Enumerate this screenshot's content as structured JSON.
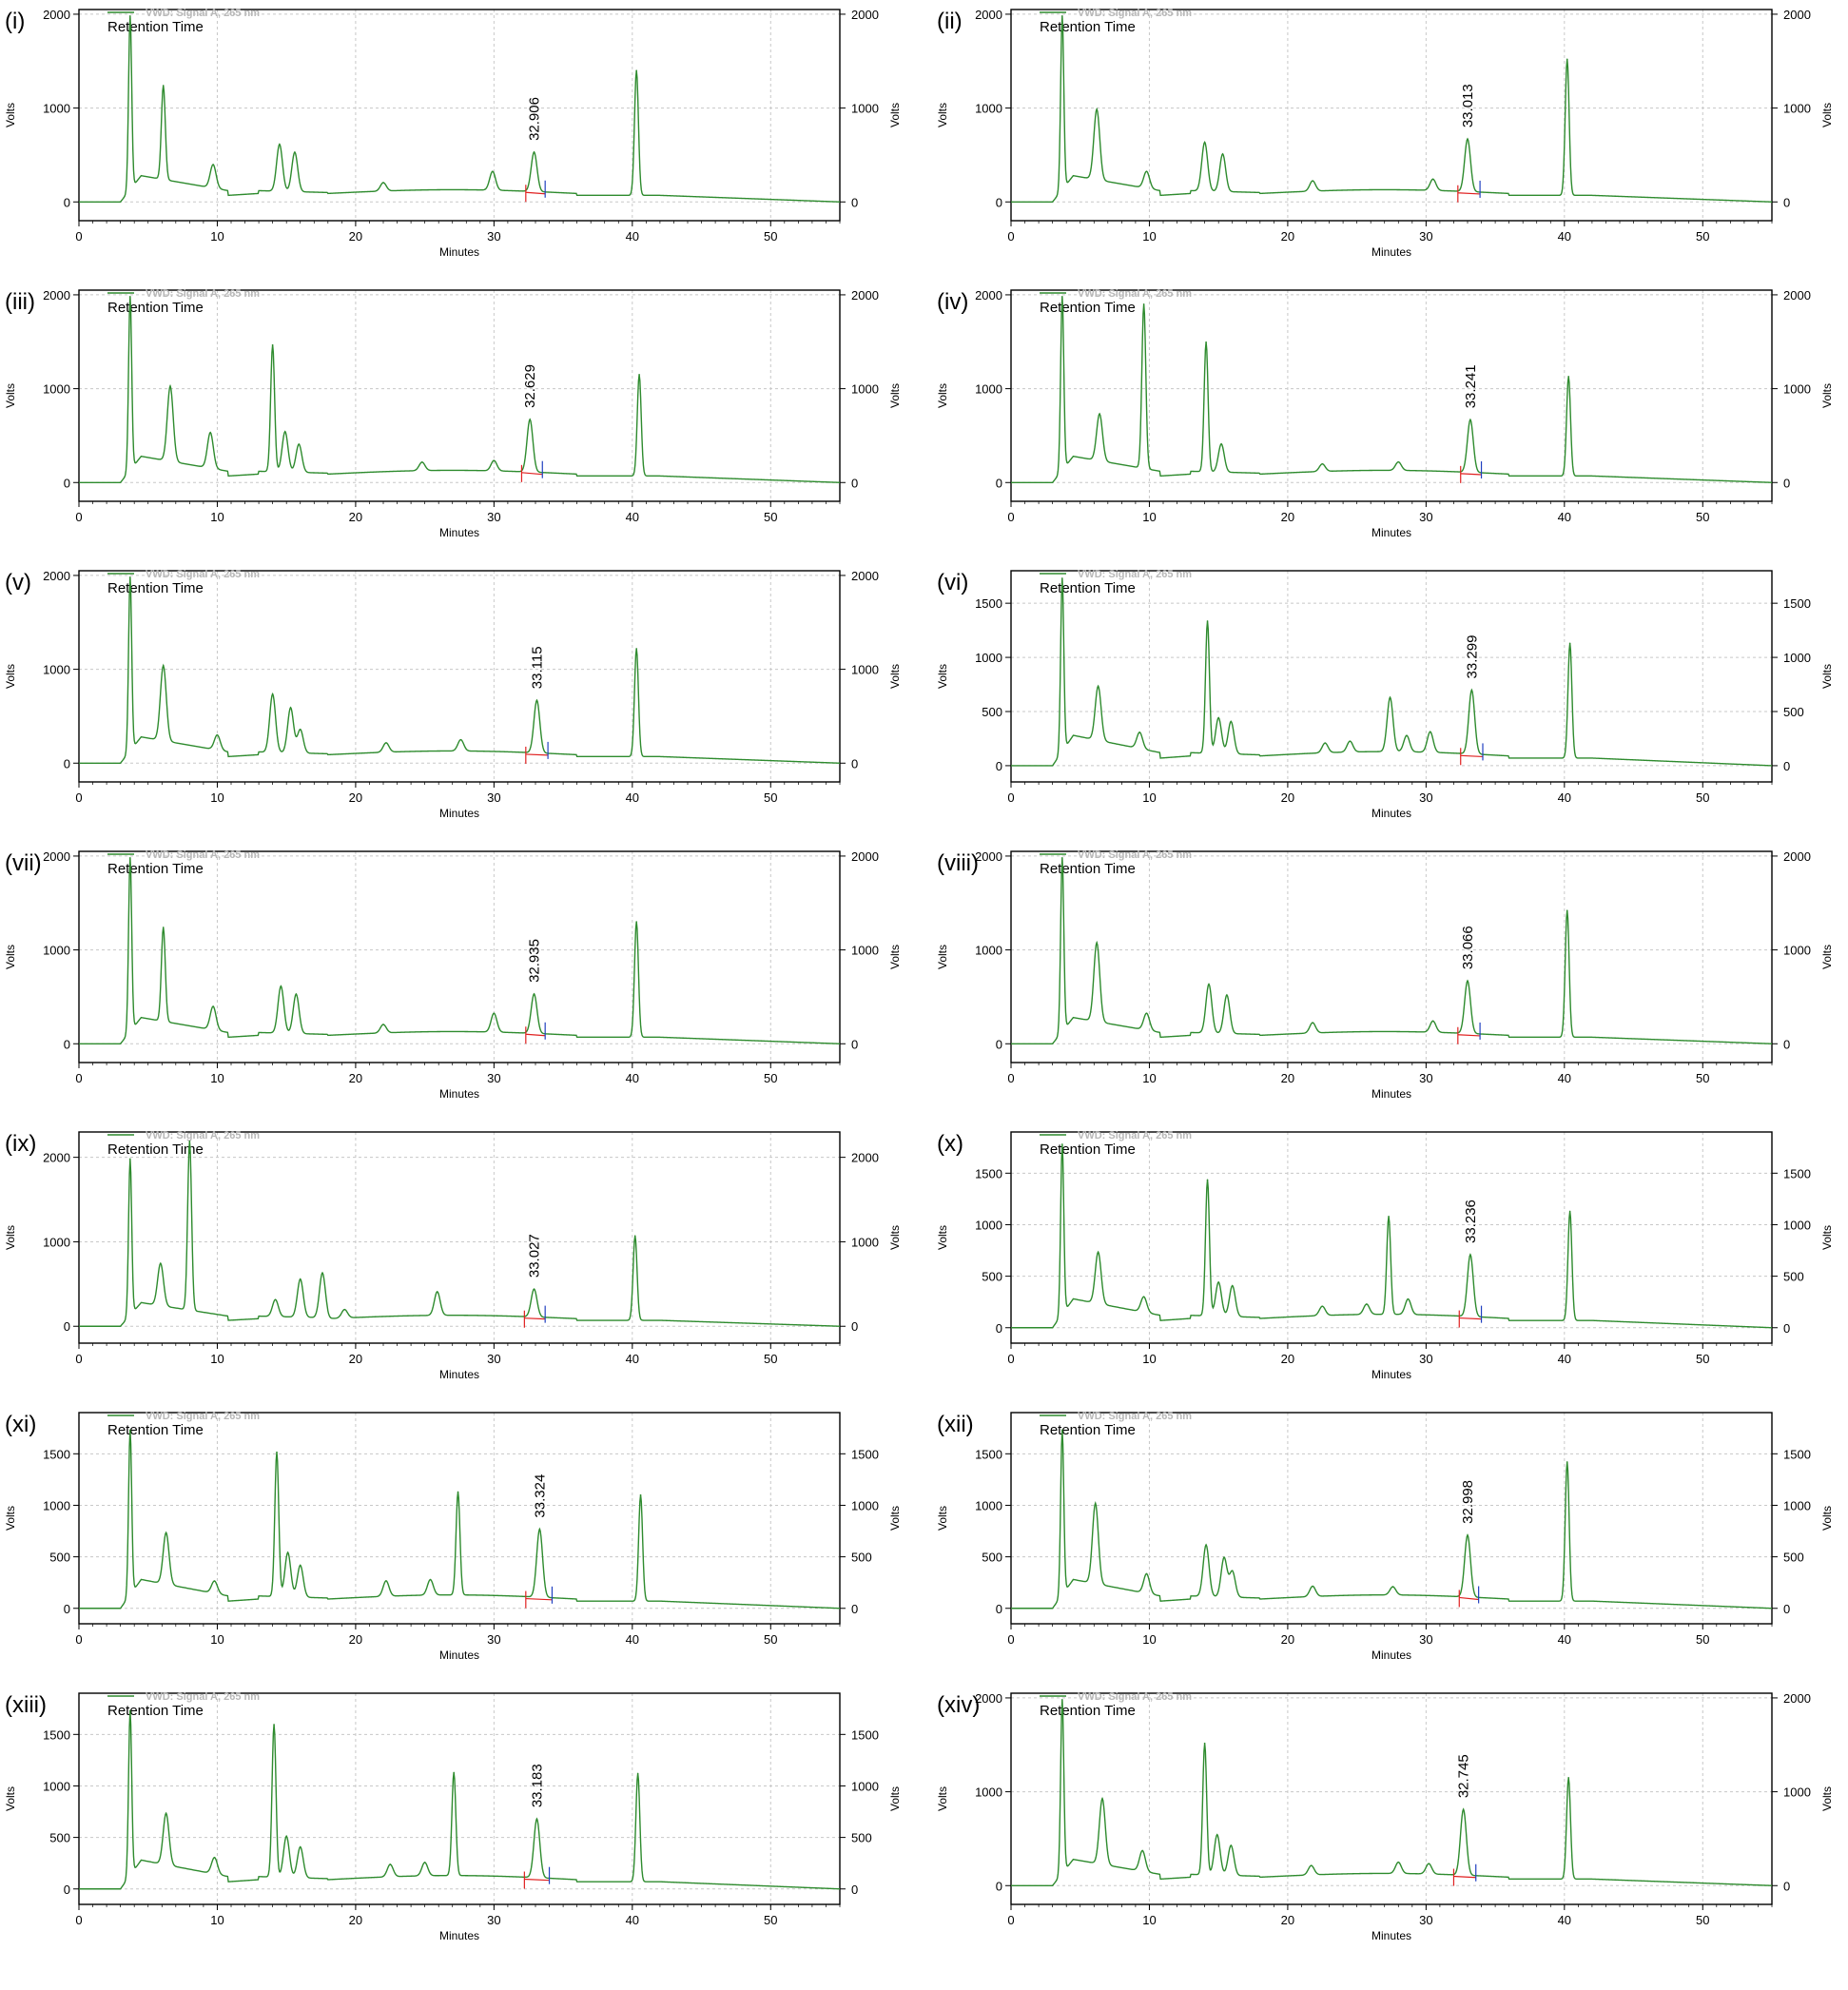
{
  "figure": {
    "line_color": "#2e8b2e",
    "baseline_red_color": "#e02020",
    "baseline_blue_color": "#2040c0",
    "legend_text_color": "#b8b8b8",
    "grid_color": "#c8c8c8",
    "icons": [
      "green-legend-line"
    ]
  },
  "chart_data": [
    {
      "type": "line",
      "label": "(i)",
      "legend": "VWD: Signal A, 265 nm",
      "annotation": "Retention Time",
      "peak_label": "32.906",
      "xlabel": "Minutes",
      "ylabel": "Volts",
      "xlim": [
        0,
        55
      ],
      "ylim": [
        -200,
        2050
      ],
      "x_ticks": [
        0,
        10,
        20,
        30,
        40,
        50
      ],
      "y_ticks": [
        0,
        1000,
        2000
      ],
      "grid": true,
      "peaks": [
        [
          3.7,
          1850
        ],
        [
          6.1,
          1000
        ],
        [
          9.7,
          250
        ],
        [
          14.5,
          500
        ],
        [
          15.6,
          420
        ],
        [
          22.0,
          90
        ],
        [
          29.9,
          200
        ],
        [
          32.9,
          420
        ],
        [
          40.3,
          1330
        ]
      ],
      "integration_window": [
        32.3,
        33.7
      ]
    },
    {
      "type": "line",
      "label": "(ii)",
      "legend": "VWD: Signal A, 265 nm",
      "annotation": "Retention Time",
      "peak_label": "33.013",
      "xlabel": "Minutes",
      "ylabel": "Volts",
      "xlim": [
        0,
        55
      ],
      "ylim": [
        -200,
        2050
      ],
      "x_ticks": [
        0,
        10,
        20,
        30,
        40,
        50
      ],
      "y_ticks": [
        0,
        1000,
        2000
      ],
      "grid": true,
      "peaks": [
        [
          3.7,
          1850
        ],
        [
          6.2,
          750
        ],
        [
          9.8,
          180
        ],
        [
          14.0,
          520
        ],
        [
          15.3,
          400
        ],
        [
          21.8,
          110
        ],
        [
          30.5,
          120
        ],
        [
          33.0,
          560
        ],
        [
          40.2,
          1450
        ]
      ],
      "integration_window": [
        32.3,
        33.9
      ]
    },
    {
      "type": "line",
      "label": "(iii)",
      "legend": "VWD: Signal A, 265 nm",
      "annotation": "Retention Time",
      "peak_label": "32.629",
      "xlabel": "Minutes",
      "ylabel": "Volts",
      "xlim": [
        0,
        55
      ],
      "ylim": [
        -200,
        2050
      ],
      "x_ticks": [
        0,
        10,
        20,
        30,
        40,
        50
      ],
      "y_ticks": [
        0,
        1000,
        2000
      ],
      "grid": true,
      "peaks": [
        [
          3.7,
          1850
        ],
        [
          6.6,
          800
        ],
        [
          9.5,
          380
        ],
        [
          14.0,
          1350
        ],
        [
          14.9,
          430
        ],
        [
          15.9,
          300
        ],
        [
          24.8,
          90
        ],
        [
          30.0,
          110
        ],
        [
          32.6,
          560
        ],
        [
          40.5,
          1080
        ]
      ],
      "integration_window": [
        32.0,
        33.5
      ]
    },
    {
      "type": "line",
      "label": "(iv)",
      "legend": "VWD: Signal A, 265 nm",
      "annotation": "Retention Time",
      "peak_label": "33.241",
      "xlabel": "Minutes",
      "ylabel": "Volts",
      "xlim": [
        0,
        55
      ],
      "ylim": [
        -200,
        2050
      ],
      "x_ticks": [
        0,
        10,
        20,
        30,
        40,
        50
      ],
      "y_ticks": [
        0,
        1000,
        2000
      ],
      "grid": true,
      "peaks": [
        [
          3.7,
          1850
        ],
        [
          6.4,
          500
        ],
        [
          9.6,
          1750
        ],
        [
          14.1,
          1380
        ],
        [
          15.2,
          300
        ],
        [
          22.5,
          80
        ],
        [
          28.0,
          90
        ],
        [
          33.2,
          560
        ],
        [
          40.3,
          1060
        ]
      ],
      "integration_window": [
        32.5,
        34.0
      ]
    },
    {
      "type": "line",
      "label": "(v)",
      "legend": "VWD: Signal A, 265 nm",
      "annotation": "Retention Time",
      "peak_label": "33.115",
      "xlabel": "Minutes",
      "ylabel": "Volts",
      "xlim": [
        0,
        55
      ],
      "ylim": [
        -200,
        2050
      ],
      "x_ticks": [
        0,
        10,
        20,
        30,
        40,
        50
      ],
      "y_ticks": [
        0,
        1000,
        2000
      ],
      "grid": true,
      "peaks": [
        [
          3.7,
          1850
        ],
        [
          6.1,
          800
        ],
        [
          10.0,
          160
        ],
        [
          14.0,
          620
        ],
        [
          15.3,
          480
        ],
        [
          16.0,
          250
        ],
        [
          22.2,
          100
        ],
        [
          27.6,
          120
        ],
        [
          33.1,
          560
        ],
        [
          40.3,
          1150
        ]
      ],
      "integration_window": [
        32.3,
        33.9
      ]
    },
    {
      "type": "line",
      "label": "(vi)",
      "legend": "VWD: Signal A, 265 nm",
      "annotation": "Retention Time",
      "peak_label": "33.299",
      "xlabel": "Minutes",
      "ylabel": "Volts",
      "xlim": [
        0,
        55
      ],
      "ylim": [
        -150,
        1800
      ],
      "x_ticks": [
        0,
        10,
        20,
        30,
        40,
        50
      ],
      "y_ticks": [
        0,
        500,
        1000,
        1500
      ],
      "grid": true,
      "peaks": [
        [
          3.7,
          1600
        ],
        [
          6.3,
          500
        ],
        [
          9.3,
          150
        ],
        [
          14.2,
          1220
        ],
        [
          15.0,
          330
        ],
        [
          15.9,
          300
        ],
        [
          22.7,
          90
        ],
        [
          24.5,
          100
        ],
        [
          27.4,
          500
        ],
        [
          28.6,
          150
        ],
        [
          30.3,
          190
        ],
        [
          33.3,
          590
        ],
        [
          40.4,
          1060
        ]
      ],
      "integration_window": [
        32.5,
        34.1
      ]
    },
    {
      "type": "line",
      "label": "(vii)",
      "legend": "VWD: Signal A, 265 nm",
      "annotation": "Retention Time",
      "peak_label": "32.935",
      "xlabel": "Minutes",
      "ylabel": "Volts",
      "xlim": [
        0,
        55
      ],
      "ylim": [
        -200,
        2050
      ],
      "x_ticks": [
        0,
        10,
        20,
        30,
        40,
        50
      ],
      "y_ticks": [
        0,
        1000,
        2000
      ],
      "grid": true,
      "peaks": [
        [
          3.7,
          1850
        ],
        [
          6.1,
          1000
        ],
        [
          9.7,
          250
        ],
        [
          14.6,
          500
        ],
        [
          15.7,
          420
        ],
        [
          22.0,
          90
        ],
        [
          30.0,
          200
        ],
        [
          32.9,
          420
        ],
        [
          40.3,
          1230
        ]
      ],
      "integration_window": [
        32.3,
        33.7
      ]
    },
    {
      "type": "line",
      "label": "(viii)",
      "legend": "VWD: Signal A, 265 nm",
      "annotation": "Retention Time",
      "peak_label": "33.066",
      "xlabel": "Minutes",
      "ylabel": "Volts",
      "xlim": [
        0,
        55
      ],
      "ylim": [
        -200,
        2050
      ],
      "x_ticks": [
        0,
        10,
        20,
        30,
        40,
        50
      ],
      "y_ticks": [
        0,
        1000,
        2000
      ],
      "grid": true,
      "peaks": [
        [
          3.7,
          1850
        ],
        [
          6.2,
          840
        ],
        [
          9.8,
          180
        ],
        [
          14.3,
          520
        ],
        [
          15.6,
          410
        ],
        [
          21.8,
          110
        ],
        [
          30.5,
          120
        ],
        [
          33.0,
          560
        ],
        [
          40.2,
          1350
        ]
      ],
      "integration_window": [
        32.3,
        33.9
      ]
    },
    {
      "type": "line",
      "label": "(ix)",
      "legend": "VWD: Signal A, 265 nm",
      "annotation": "Retention Time",
      "peak_label": "33.027",
      "xlabel": "Minutes",
      "ylabel": "Volts",
      "xlim": [
        0,
        55
      ],
      "ylim": [
        -200,
        2300
      ],
      "x_ticks": [
        0,
        10,
        20,
        30,
        40,
        50
      ],
      "y_ticks": [
        0,
        1000,
        2000
      ],
      "grid": true,
      "peaks": [
        [
          3.7,
          1850
        ],
        [
          5.9,
          500
        ],
        [
          8.0,
          2000
        ],
        [
          14.2,
          200
        ],
        [
          16.0,
          450
        ],
        [
          17.6,
          530
        ],
        [
          19.2,
          100
        ],
        [
          25.9,
          280
        ],
        [
          32.9,
          330
        ],
        [
          40.2,
          1000
        ]
      ],
      "integration_window": [
        32.2,
        33.7
      ]
    },
    {
      "type": "line",
      "label": "(x)",
      "legend": "VWD: Signal A, 265 nm",
      "annotation": "Retention Time",
      "peak_label": "33.236",
      "xlabel": "Minutes",
      "ylabel": "Volts",
      "xlim": [
        0,
        55
      ],
      "ylim": [
        -150,
        1900
      ],
      "x_ticks": [
        0,
        10,
        20,
        30,
        40,
        50
      ],
      "y_ticks": [
        0,
        500,
        1000,
        1500
      ],
      "grid": true,
      "peaks": [
        [
          3.7,
          1650
        ],
        [
          6.3,
          500
        ],
        [
          9.6,
          150
        ],
        [
          14.2,
          1320
        ],
        [
          15.0,
          330
        ],
        [
          16.0,
          300
        ],
        [
          22.5,
          90
        ],
        [
          25.7,
          100
        ],
        [
          27.3,
          950
        ],
        [
          28.7,
          150
        ],
        [
          33.2,
          600
        ],
        [
          40.4,
          1060
        ]
      ],
      "integration_window": [
        32.4,
        34.0
      ]
    },
    {
      "type": "line",
      "label": "(xi)",
      "legend": "VWD: Signal A, 265 nm",
      "annotation": "Retention Time",
      "peak_label": "33.324",
      "xlabel": "Minutes",
      "ylabel": "Volts",
      "xlim": [
        0,
        55
      ],
      "ylim": [
        -150,
        1900
      ],
      "x_ticks": [
        0,
        10,
        20,
        30,
        40,
        50
      ],
      "y_ticks": [
        0,
        500,
        1000,
        1500
      ],
      "grid": true,
      "peaks": [
        [
          3.7,
          1600
        ],
        [
          6.3,
          500
        ],
        [
          9.8,
          120
        ],
        [
          14.3,
          1400
        ],
        [
          15.1,
          430
        ],
        [
          16.0,
          310
        ],
        [
          22.2,
          150
        ],
        [
          25.4,
          150
        ],
        [
          27.4,
          1000
        ],
        [
          33.3,
          660
        ],
        [
          40.6,
          1030
        ]
      ],
      "integration_window": [
        32.3,
        34.2
      ]
    },
    {
      "type": "line",
      "label": "(xii)",
      "legend": "VWD: Signal A, 265 nm",
      "annotation": "Retention Time",
      "peak_label": "32.998",
      "xlabel": "Minutes",
      "ylabel": "Volts",
      "xlim": [
        0,
        55
      ],
      "ylim": [
        -150,
        1900
      ],
      "x_ticks": [
        0,
        10,
        20,
        30,
        40,
        50
      ],
      "y_ticks": [
        0,
        500,
        1000,
        1500
      ],
      "grid": true,
      "peaks": [
        [
          3.7,
          1600
        ],
        [
          6.1,
          780
        ],
        [
          9.8,
          190
        ],
        [
          14.1,
          500
        ],
        [
          15.4,
          380
        ],
        [
          16.0,
          250
        ],
        [
          21.8,
          100
        ],
        [
          27.6,
          80
        ],
        [
          33.0,
          600
        ],
        [
          40.2,
          1350
        ]
      ],
      "integration_window": [
        32.4,
        33.8
      ]
    },
    {
      "type": "line",
      "label": "(xiii)",
      "legend": "VWD: Signal A, 265 nm",
      "annotation": "Retention Time",
      "peak_label": "33.183",
      "xlabel": "Minutes",
      "ylabel": "Volts",
      "xlim": [
        0,
        55
      ],
      "ylim": [
        -150,
        1900
      ],
      "x_ticks": [
        0,
        10,
        20,
        30,
        40,
        50
      ],
      "y_ticks": [
        0,
        500,
        1000,
        1500
      ],
      "grid": true,
      "peaks": [
        [
          3.7,
          1600
        ],
        [
          6.3,
          500
        ],
        [
          9.8,
          160
        ],
        [
          14.1,
          1480
        ],
        [
          15.0,
          400
        ],
        [
          16.0,
          300
        ],
        [
          22.5,
          120
        ],
        [
          25.0,
          130
        ],
        [
          27.1,
          1000
        ],
        [
          33.1,
          570
        ],
        [
          40.4,
          1050
        ]
      ],
      "integration_window": [
        32.2,
        34.0
      ]
    },
    {
      "type": "line",
      "label": "(xiv)",
      "legend": "VWD: Signal A, 265 nm",
      "annotation": "Retention Time",
      "peak_label": "32.745",
      "xlabel": "Minutes",
      "ylabel": "Volts",
      "xlim": [
        0,
        55
      ],
      "ylim": [
        -200,
        2050
      ],
      "x_ticks": [
        0,
        10,
        20,
        30,
        40,
        50
      ],
      "y_ticks": [
        0,
        1000,
        2000
      ],
      "grid": true,
      "peaks": [
        [
          3.7,
          1850
        ],
        [
          6.6,
          700
        ],
        [
          9.5,
          220
        ],
        [
          14.0,
          1400
        ],
        [
          14.9,
          430
        ],
        [
          15.9,
          320
        ],
        [
          21.7,
          100
        ],
        [
          28.0,
          120
        ],
        [
          30.2,
          110
        ],
        [
          32.7,
          700
        ],
        [
          40.3,
          1080
        ]
      ],
      "integration_window": [
        32.0,
        33.6
      ]
    }
  ]
}
